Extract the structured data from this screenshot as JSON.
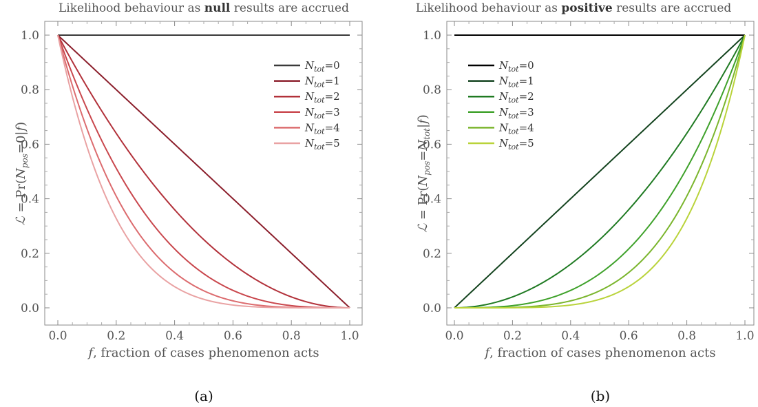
{
  "chart_data": [
    {
      "type": "line",
      "panel": "(a)",
      "title_prefix": "Likelihood behaviour as ",
      "title_bold": "null",
      "title_suffix": " results are accrued",
      "xlabel_var": "f",
      "xlabel_rest": ", fraction of cases phenomenon acts",
      "ylabel": "ℒ = Pr(N_pos=0|f)",
      "xlim": [
        0,
        1
      ],
      "ylim": [
        0,
        1
      ],
      "xticks": [
        "0.0",
        "0.2",
        "0.4",
        "0.6",
        "0.8",
        "1.0"
      ],
      "yticks": [
        "0.0",
        "0.2",
        "0.4",
        "0.6",
        "0.8",
        "1.0"
      ],
      "legend_position": "top-right",
      "function": "(1-f)^N",
      "series": [
        {
          "name": "N_tot=0",
          "n": 0,
          "color": "#3a3a3a"
        },
        {
          "name": "N_tot=1",
          "n": 1,
          "color": "#8b1e2b"
        },
        {
          "name": "N_tot=2",
          "n": 2,
          "color": "#b2313a"
        },
        {
          "name": "N_tot=3",
          "n": 3,
          "color": "#c9474d"
        },
        {
          "name": "N_tot=4",
          "n": 4,
          "color": "#dc6b6e"
        },
        {
          "name": "N_tot=5",
          "n": 5,
          "color": "#e9a2a3"
        }
      ]
    },
    {
      "type": "line",
      "panel": "(b)",
      "title_prefix": "Likelihood behaviour as ",
      "title_bold": "positive",
      "title_suffix": " results are accrued",
      "xlabel_var": "f",
      "xlabel_rest": ", fraction of cases phenomenon acts",
      "ylabel": "ℒ = Pr(N_pos=N_tot|f)",
      "xlim": [
        0,
        1
      ],
      "ylim": [
        0,
        1
      ],
      "xticks": [
        "0.0",
        "0.2",
        "0.4",
        "0.6",
        "0.8",
        "1.0"
      ],
      "yticks": [
        "0.0",
        "0.2",
        "0.4",
        "0.6",
        "0.8",
        "1.0"
      ],
      "legend_position": "top-left",
      "function": "f^N",
      "series": [
        {
          "name": "N_tot=0",
          "n": 0,
          "color": "#000000"
        },
        {
          "name": "N_tot=1",
          "n": 1,
          "color": "#12421d"
        },
        {
          "name": "N_tot=2",
          "n": 2,
          "color": "#1f7a22"
        },
        {
          "name": "N_tot=3",
          "n": 3,
          "color": "#3ea12a"
        },
        {
          "name": "N_tot=4",
          "n": 4,
          "color": "#7ab52c"
        },
        {
          "name": "N_tot=5",
          "n": 5,
          "color": "#b9d33a"
        }
      ]
    }
  ]
}
